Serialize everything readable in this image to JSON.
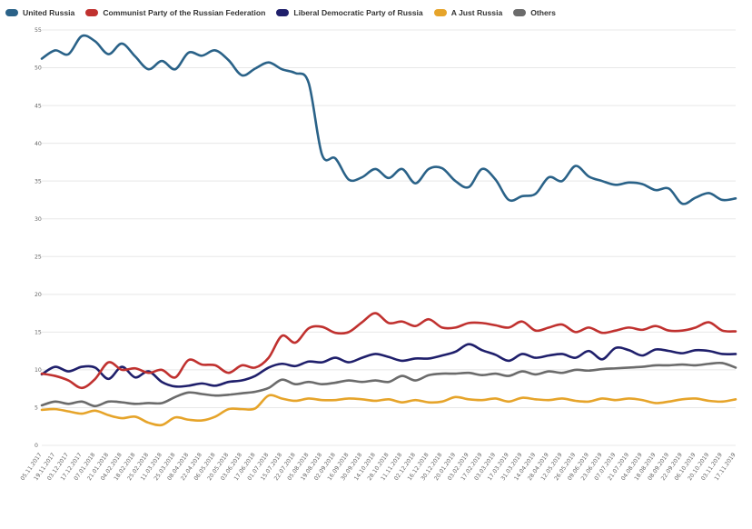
{
  "chart_data": {
    "type": "line",
    "title": "",
    "xlabel": "",
    "ylabel": "",
    "ylim": [
      0,
      55
    ],
    "yticks": [
      0,
      5,
      10,
      15,
      20,
      25,
      30,
      35,
      40,
      45,
      50,
      55
    ],
    "grid": true,
    "legend_position": "top-left",
    "x_tick_labels": [
      "05.11.2017",
      "19.11.2017",
      "03.12.2017",
      "17.12.2017",
      "07.01.2018",
      "21.01.2018",
      "04.02.2018",
      "18.02.2018",
      "25.02.2018",
      "11.03.2018",
      "25.03.2018",
      "08.04.2018",
      "22.04.2018",
      "06.05.2018",
      "20.05.2018",
      "03.06.2018",
      "17.06.2018",
      "01.07.2018",
      "15.07.2018",
      "22.07.2018",
      "05.08.2018",
      "19.08.2018",
      "02.09.2018",
      "16.09.2018",
      "30.09.2018",
      "14.10.2018",
      "28.10.2018",
      "11.11.2018",
      "02.12.2018",
      "16.12.2018",
      "30.12.2018",
      "20.01.2019",
      "03.02.2019",
      "17.02.2019",
      "03.03.2019",
      "17.03.2019",
      "31.03.2019",
      "14.04.2019",
      "28.04.2019",
      "12.05.2019",
      "26.05.2019",
      "09.06.2019",
      "23.06.2019",
      "07.07.2019",
      "21.07.2019",
      "04.08.2019",
      "18.08.2019",
      "08.09.2019",
      "22.09.2019",
      "06.10.2019",
      "20.10.2019",
      "03.11.2019",
      "17.11.2019"
    ],
    "series": [
      {
        "name": "United Russia",
        "color": "#2a6288",
        "values": [
          51.2,
          52.3,
          51.8,
          54.2,
          53.5,
          51.8,
          53.2,
          51.5,
          49.8,
          50.9,
          49.8,
          52.0,
          51.6,
          52.3,
          51.0,
          49.0,
          49.9,
          50.7,
          49.8,
          49.3,
          48.0,
          38.5,
          38.0,
          35.2,
          35.5,
          36.6,
          35.4,
          36.6,
          34.7,
          36.6,
          36.7,
          35.0,
          34.2,
          36.6,
          35.2,
          32.5,
          33.0,
          33.3,
          35.5,
          35.0,
          37.0,
          35.6,
          35.0,
          34.5,
          34.8,
          34.6,
          33.8,
          34.0,
          32.0,
          32.8,
          33.4,
          32.5,
          32.7
        ]
      },
      {
        "name": "Communist Party of the Russian Federation",
        "color": "#c0312f",
        "values": [
          9.5,
          9.2,
          8.6,
          7.6,
          8.8,
          11.0,
          10.0,
          10.2,
          9.6,
          10.0,
          9.0,
          11.3,
          10.7,
          10.6,
          9.6,
          10.6,
          10.3,
          11.6,
          14.5,
          13.6,
          15.5,
          15.7,
          14.9,
          15.0,
          16.3,
          17.5,
          16.2,
          16.4,
          15.8,
          16.7,
          15.6,
          15.6,
          16.2,
          16.2,
          15.9,
          15.6,
          16.4,
          15.2,
          15.6,
          16.0,
          15.0,
          15.6,
          14.9,
          15.2,
          15.6,
          15.3,
          15.8,
          15.2,
          15.2,
          15.6,
          16.3,
          15.2,
          15.1
        ]
      },
      {
        "name": "Liberal Democratic Party of Russia",
        "color": "#1f1f6b",
        "values": [
          9.4,
          10.4,
          9.8,
          10.4,
          10.3,
          8.8,
          10.4,
          9.0,
          9.8,
          8.4,
          7.8,
          7.9,
          8.2,
          7.9,
          8.4,
          8.6,
          9.2,
          10.3,
          10.8,
          10.5,
          11.1,
          11.0,
          11.6,
          11.0,
          11.6,
          12.1,
          11.7,
          11.2,
          11.5,
          11.5,
          11.9,
          12.4,
          13.4,
          12.6,
          12.0,
          11.2,
          12.1,
          11.6,
          11.9,
          12.1,
          11.6,
          12.5,
          11.4,
          12.9,
          12.6,
          11.9,
          12.7,
          12.5,
          12.2,
          12.6,
          12.5,
          12.1,
          12.1
        ]
      },
      {
        "name": "A Just Russia",
        "color": "#e6a42a",
        "values": [
          4.7,
          4.8,
          4.5,
          4.2,
          4.6,
          4.0,
          3.6,
          3.8,
          3.0,
          2.7,
          3.7,
          3.4,
          3.3,
          3.8,
          4.8,
          4.8,
          4.9,
          6.6,
          6.2,
          5.9,
          6.2,
          6.0,
          6.0,
          6.2,
          6.1,
          5.9,
          6.1,
          5.7,
          6.0,
          5.7,
          5.8,
          6.4,
          6.1,
          6.0,
          6.2,
          5.8,
          6.3,
          6.1,
          6.0,
          6.2,
          5.9,
          5.8,
          6.2,
          6.0,
          6.2,
          6.0,
          5.6,
          5.8,
          6.1,
          6.2,
          5.9,
          5.8,
          6.1
        ]
      },
      {
        "name": "Others",
        "color": "#6b6b6b",
        "values": [
          5.3,
          5.8,
          5.5,
          5.8,
          5.2,
          5.8,
          5.7,
          5.5,
          5.6,
          5.6,
          6.4,
          7.0,
          6.8,
          6.6,
          6.7,
          6.9,
          7.1,
          7.6,
          8.7,
          8.1,
          8.4,
          8.1,
          8.3,
          8.6,
          8.4,
          8.6,
          8.4,
          9.2,
          8.6,
          9.3,
          9.5,
          9.5,
          9.6,
          9.3,
          9.5,
          9.2,
          9.8,
          9.4,
          9.8,
          9.6,
          10.0,
          9.9,
          10.1,
          10.2,
          10.3,
          10.4,
          10.6,
          10.6,
          10.7,
          10.6,
          10.8,
          10.9,
          10.3
        ]
      }
    ]
  }
}
